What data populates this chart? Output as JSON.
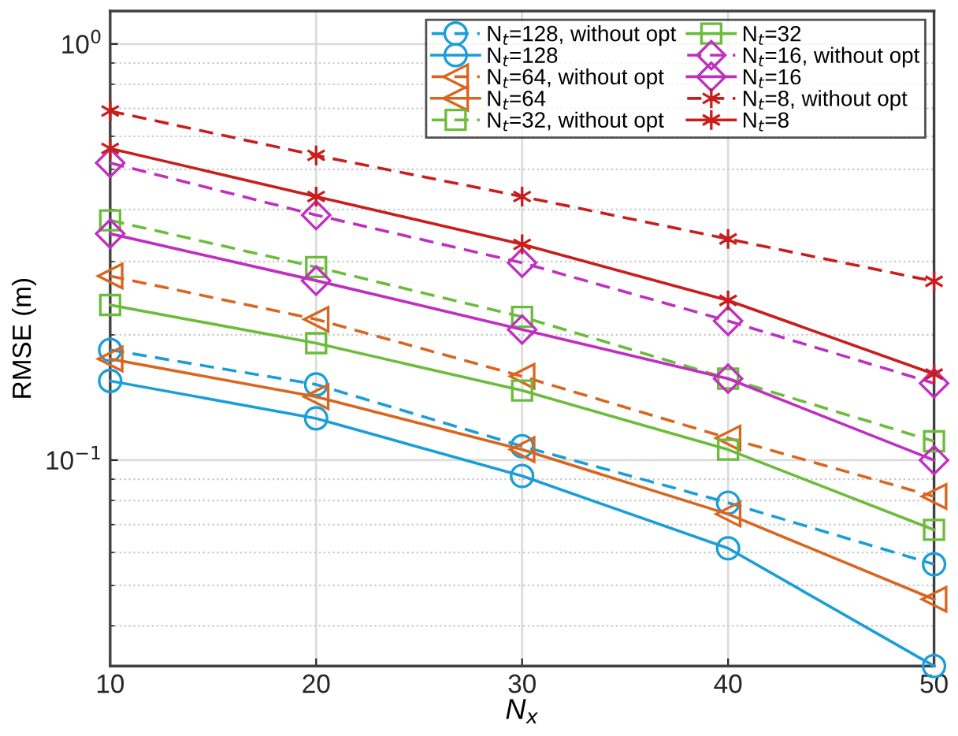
{
  "chart_data": {
    "type": "line",
    "xlabel": "N$_{x}$",
    "ylabel": "RMSE (m)",
    "x": [
      10,
      20,
      30,
      40,
      50
    ],
    "xlim": [
      10,
      50
    ],
    "xticks": [
      10,
      20,
      30,
      40,
      50
    ],
    "log": "y",
    "ylim": [
      0.032,
      1.2
    ],
    "yticks": [
      {
        "value": 0.1,
        "label": "10$^{−1}$"
      },
      {
        "value": 1,
        "label": "10$^{0}$"
      }
    ],
    "grid": true,
    "legend": "top right",
    "series": [
      {
        "name": "N$_{t}$=128, without opt",
        "color": "#1a9ed8",
        "marker": "circle",
        "line_style": "dashed",
        "values": [
          0.184,
          0.152,
          0.108,
          0.079,
          0.0562
        ]
      },
      {
        "name": "N$_{t}$=128",
        "color": "#1a9ed8",
        "marker": "circle",
        "line_style": "solid",
        "values": [
          0.155,
          0.126,
          0.0916,
          0.0614,
          0.032
        ]
      },
      {
        "name": "N$_{t}$=64, without opt",
        "color": "#d9661f",
        "marker": "triangle",
        "line_style": "dashed",
        "values": [
          0.277,
          0.218,
          0.159,
          0.113,
          0.0818
        ]
      },
      {
        "name": "N$_{t}$=64",
        "color": "#d9661f",
        "marker": "triangle",
        "line_style": "solid",
        "values": [
          0.175,
          0.142,
          0.106,
          0.0742,
          0.0463
        ]
      },
      {
        "name": "N$_{t}$=32, without opt",
        "color": "#6cbc3c",
        "marker": "square",
        "line_style": "dashed",
        "values": [
          0.377,
          0.291,
          0.221,
          0.157,
          0.111
        ]
      },
      {
        "name": "N$_{t}$=32",
        "color": "#6cbc3c",
        "marker": "square",
        "line_style": "solid",
        "values": [
          0.236,
          0.191,
          0.147,
          0.106,
          0.068
        ]
      },
      {
        "name": "N$_{t}$=16, without opt",
        "color": "#c02fbf",
        "marker": "diamond",
        "line_style": "dashed",
        "values": [
          0.518,
          0.388,
          0.298,
          0.216,
          0.153
        ]
      },
      {
        "name": "N$_{t}$=16",
        "color": "#c02fbf",
        "marker": "diamond",
        "line_style": "solid",
        "values": [
          0.35,
          0.27,
          0.206,
          0.157,
          0.1
        ]
      },
      {
        "name": "N$_{t}$=8, without opt",
        "color": "#c81e1e",
        "marker": "cross",
        "line_style": "dashed",
        "values": [
          0.69,
          0.54,
          0.43,
          0.34,
          0.269
        ]
      },
      {
        "name": "N$_{t}$=8",
        "color": "#c81e1e",
        "marker": "cross",
        "line_style": "solid",
        "values": [
          0.561,
          0.43,
          0.33,
          0.242,
          0.161
        ]
      }
    ]
  }
}
